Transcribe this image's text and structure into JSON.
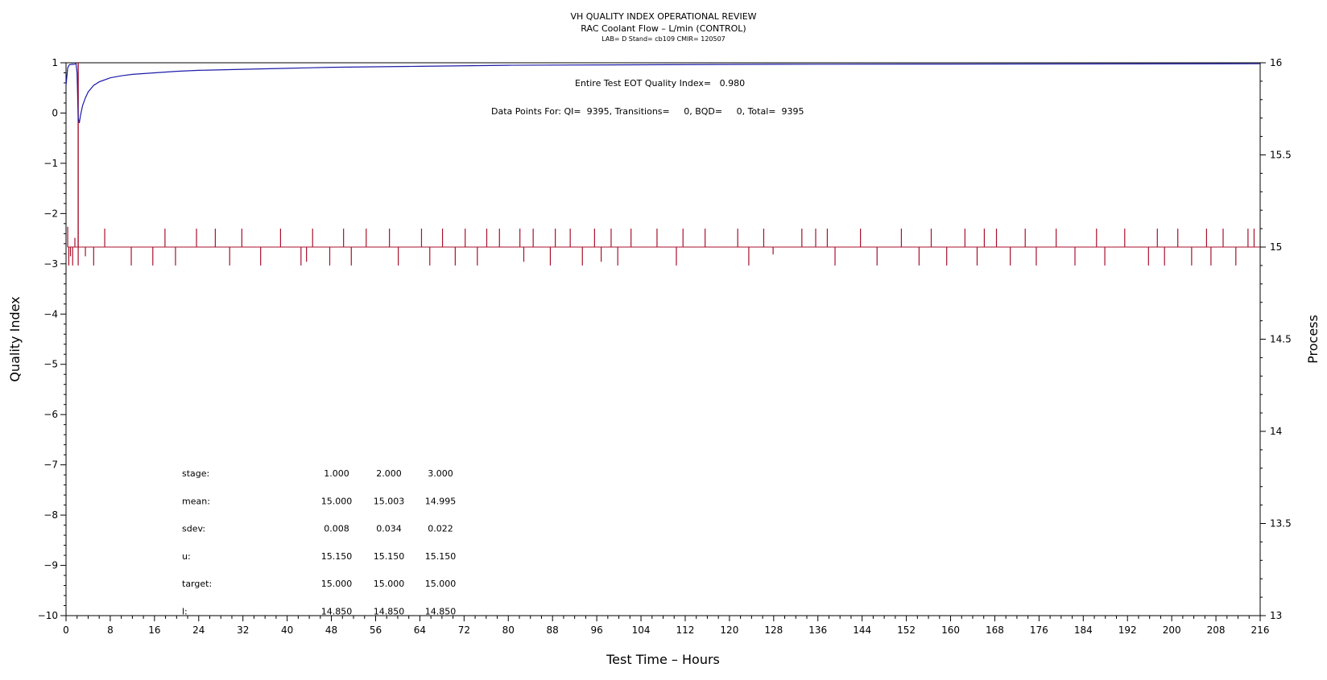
{
  "header": {
    "title": "VH QUALITY INDEX OPERATIONAL REVIEW",
    "subtitle": "RAC Coolant Flow – L/min (CONTROL)",
    "info": "LAB= D Stand= cb109 CMIR= 120507"
  },
  "annotations": {
    "eot": "Entire Test EOT Quality Index=   0.980",
    "datapoints": "Data Points For: QI=  9395, Transitions=     0, BQD=     0, Total=  9395"
  },
  "stats_table": {
    "rows": [
      {
        "label": "stage:",
        "values": [
          "1.000",
          "2.000",
          "3.000"
        ]
      },
      {
        "label": "mean:",
        "values": [
          "15.000",
          "15.003",
          "14.995"
        ]
      },
      {
        "label": "sdev:",
        "values": [
          "0.008",
          "0.034",
          "0.022"
        ]
      },
      {
        "label": "u:",
        "values": [
          "15.150",
          "15.150",
          "15.150"
        ]
      },
      {
        "label": "target:",
        "values": [
          "15.000",
          "15.000",
          "15.000"
        ]
      },
      {
        "label": "l:",
        "values": [
          "14.850",
          "14.850",
          "14.850"
        ]
      }
    ]
  },
  "chart_data": {
    "type": "line",
    "xlabel": "Test Time – Hours",
    "ylabel": "Quality Index",
    "y2label": "Process",
    "xlim": [
      0,
      216
    ],
    "ylim": [
      -10,
      1
    ],
    "y2lim": [
      13,
      16
    ],
    "x_ticks": [
      0,
      8,
      16,
      24,
      32,
      40,
      48,
      56,
      64,
      72,
      80,
      88,
      96,
      104,
      112,
      120,
      128,
      136,
      144,
      152,
      160,
      168,
      176,
      184,
      192,
      200,
      208,
      216
    ],
    "y_ticks": [
      1,
      0,
      -1,
      -2,
      -3,
      -4,
      -5,
      -6,
      -7,
      -8,
      -9,
      -10
    ],
    "y2_ticks": [
      16,
      15.5,
      15,
      14.5,
      14,
      13.5,
      13
    ],
    "colors": {
      "quality_index": "#1c1ca8",
      "process": "#a8102c"
    },
    "series": [
      {
        "name": "Quality Index",
        "axis": "left",
        "x": [
          0,
          0.3,
          0.6,
          1.0,
          1.4,
          1.8,
          2.0,
          2.2,
          2.4,
          2.6,
          3.0,
          3.5,
          4,
          5,
          6,
          8,
          10,
          12,
          16,
          20,
          24,
          32,
          40,
          48,
          64,
          80,
          104,
          128,
          160,
          192,
          216
        ],
        "y": [
          0.55,
          0.9,
          0.96,
          0.97,
          0.97,
          0.98,
          0.8,
          -0.1,
          -0.2,
          -0.05,
          0.15,
          0.3,
          0.42,
          0.55,
          0.62,
          0.7,
          0.74,
          0.77,
          0.8,
          0.83,
          0.85,
          0.87,
          0.89,
          0.91,
          0.93,
          0.95,
          0.96,
          0.97,
          0.975,
          0.978,
          0.98
        ]
      },
      {
        "name": "Process",
        "axis": "right",
        "baseline": 15.0,
        "x": [
          0.3,
          0.5,
          0.8,
          1.2,
          1.6,
          2.2,
          3.5,
          5,
          7,
          11.8,
          15.7,
          17.9,
          19.8,
          23.6,
          27,
          29.6,
          31.8,
          35.2,
          38.8,
          42.5,
          43.5,
          44.6,
          47.7,
          50.2,
          51.6,
          54.3,
          58.5,
          60.1,
          64.3,
          65.8,
          68.1,
          70.4,
          72.2,
          74.4,
          76.1,
          78.4,
          82.1,
          82.8,
          84.5,
          87.6,
          88.5,
          91.2,
          93.4,
          95.6,
          96.8,
          98.6,
          99.8,
          102.2,
          106.9,
          110.4,
          111.6,
          115.6,
          121.5,
          123.5,
          126.2,
          127.9,
          133.1,
          135.6,
          137.7,
          139.1,
          143.7,
          146.7,
          151.1,
          154.3,
          156.5,
          159.3,
          162.6,
          164.8,
          166.1,
          168.3,
          170.8,
          173.5,
          175.5,
          179.1,
          182.5,
          186.4,
          187.9,
          191.5,
          195.8,
          197.4,
          198.7,
          201.1,
          203.6,
          206.3,
          207.1,
          209.3,
          211.6,
          213.8,
          214.9
        ],
        "y": [
          15.11,
          14.9,
          14.95,
          14.9,
          15.05,
          14.9,
          14.95,
          14.9,
          15.1,
          14.9,
          14.9,
          15.1,
          14.9,
          15.1,
          15.1,
          14.9,
          15.1,
          14.9,
          15.1,
          14.9,
          14.92,
          15.1,
          14.9,
          15.1,
          14.9,
          15.1,
          15.1,
          14.9,
          15.1,
          14.9,
          15.1,
          14.9,
          15.1,
          14.9,
          15.1,
          15.1,
          15.1,
          14.92,
          15.1,
          14.9,
          15.1,
          15.1,
          14.9,
          15.1,
          14.92,
          15.1,
          14.9,
          15.1,
          15.1,
          14.9,
          15.1,
          15.1,
          15.1,
          14.9,
          15.1,
          14.96,
          15.1,
          15.1,
          15.1,
          14.9,
          15.1,
          14.9,
          15.1,
          14.9,
          15.1,
          14.9,
          15.1,
          14.9,
          15.1,
          15.1,
          14.9,
          15.1,
          14.9,
          15.1,
          14.9,
          15.1,
          14.9,
          15.1,
          14.9,
          15.1,
          14.9,
          15.1,
          14.9,
          15.1,
          14.9,
          15.1,
          14.9,
          15.1,
          15.1
        ]
      }
    ]
  }
}
